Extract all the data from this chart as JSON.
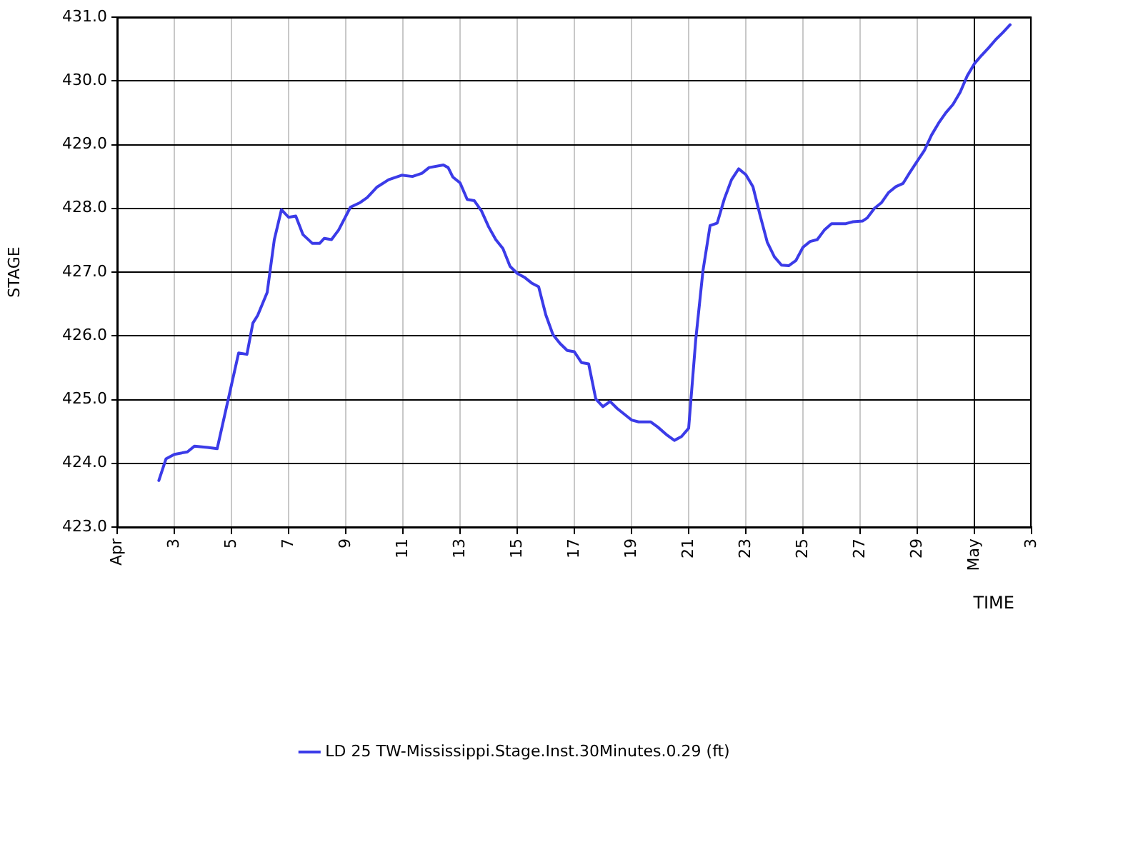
{
  "chart_data": {
    "type": "line",
    "xlabel": "TIME",
    "ylabel": "STAGE",
    "xlim": [
      "--04-01",
      "--05-03"
    ],
    "xticks": [
      {
        "value": "--04-01",
        "label": "Apr"
      },
      {
        "value": "--04-03",
        "label": "3"
      },
      {
        "value": "--04-05",
        "label": "5"
      },
      {
        "value": "--04-07",
        "label": "7"
      },
      {
        "value": "--04-09",
        "label": "9"
      },
      {
        "value": "--04-11",
        "label": "11"
      },
      {
        "value": "--04-13",
        "label": "13"
      },
      {
        "value": "--04-15",
        "label": "15"
      },
      {
        "value": "--04-17",
        "label": "17"
      },
      {
        "value": "--04-19",
        "label": "19"
      },
      {
        "value": "--04-21",
        "label": "21"
      },
      {
        "value": "--04-23",
        "label": "23"
      },
      {
        "value": "--04-25",
        "label": "25"
      },
      {
        "value": "--04-27",
        "label": "27"
      },
      {
        "value": "--04-29",
        "label": "29"
      },
      {
        "value": "--05-01",
        "label": "May"
      },
      {
        "value": "--05-03",
        "label": "3"
      }
    ],
    "ylim": [
      423,
      431
    ],
    "yticks": [
      {
        "value": 423,
        "label": "423.0"
      },
      {
        "value": 424,
        "label": "424.0"
      },
      {
        "value": 425,
        "label": "425.0"
      },
      {
        "value": 426,
        "label": "426.0"
      },
      {
        "value": 427,
        "label": "427.0"
      },
      {
        "value": 428,
        "label": "428.0"
      },
      {
        "value": 429,
        "label": "429.0"
      },
      {
        "value": 430,
        "label": "430.0"
      },
      {
        "value": 431,
        "label": "431.0"
      }
    ],
    "grid": true,
    "legend": "bottom",
    "marker": "none",
    "line_style": "solid",
    "series": [
      {
        "name": "LD 25 TW-Mississippi.Stage.Inst.30Minutes.0.29 (ft)",
        "color": "#3b3be8",
        "x": [
          "--04-02T11:00",
          "--04-02T17:00",
          "--04-03T00:00",
          "--04-03T11:00",
          "--04-03T17:00",
          "--04-04T04:00",
          "--04-04T12:00",
          "--04-05T06:00",
          "--04-05T13:00",
          "--04-05T18:00",
          "--04-05T22:00",
          "--04-06T06:00",
          "--04-06T12:00",
          "--04-06T18:00",
          "--04-07T00:00",
          "--04-07T06:00",
          "--04-07T12:00",
          "--04-07T20:00",
          "--04-08T02:00",
          "--04-08T06:00",
          "--04-08T12:00",
          "--04-08T18:00",
          "--04-09T04:00",
          "--04-09T12:00",
          "--04-09T18:00",
          "--04-10T02:00",
          "--04-10T12:00",
          "--04-10T23:00",
          "--04-11T08:00",
          "--04-11T16:00",
          "--04-11T22:00",
          "--04-12T10:00",
          "--04-12T14:00",
          "--04-12T18:00",
          "--04-13T00:00",
          "--04-13T06:00",
          "--04-13T12:00",
          "--04-13T18:00",
          "--04-14T00:00",
          "--04-14T06:00",
          "--04-14T12:00",
          "--04-14T18:00",
          "--04-15T00:00",
          "--04-15T06:00",
          "--04-15T12:00",
          "--04-15T18:00",
          "--04-16T00:00",
          "--04-16T06:00",
          "--04-16T12:00",
          "--04-16T18:00",
          "--04-17T00:00",
          "--04-17T06:00",
          "--04-17T12:00",
          "--04-17T18:00",
          "--04-18T00:00",
          "--04-18T06:00",
          "--04-18T12:00",
          "--04-19T00:00",
          "--04-19T06:00",
          "--04-19T16:00",
          "--04-19T22:00",
          "--04-20T06:00",
          "--04-20T12:00",
          "--04-20T18:00",
          "--04-21T00:00",
          "--04-21T06:00",
          "--04-21T12:00",
          "--04-21T18:00",
          "--04-22T00:00",
          "--04-22T06:00",
          "--04-22T12:00",
          "--04-22T18:00",
          "--04-23T00:00",
          "--04-23T06:00",
          "--04-23T12:00",
          "--04-23T18:00",
          "--04-24T00:00",
          "--04-24T06:00",
          "--04-24T12:00",
          "--04-24T18:00",
          "--04-25T00:00",
          "--04-25T06:00",
          "--04-25T12:00",
          "--04-25T18:00",
          "--04-26T00:00",
          "--04-26T12:00",
          "--04-26T18:00",
          "--04-27T02:00",
          "--04-27T06:00",
          "--04-27T12:00",
          "--04-27T18:00",
          "--04-28T00:00",
          "--04-28T06:00",
          "--04-28T12:00",
          "--04-28T18:00",
          "--04-29T00:00",
          "--04-29T06:00",
          "--04-29T12:00",
          "--04-29T18:00",
          "--04-30T00:00",
          "--04-30T06:00",
          "--04-30T12:00",
          "--04-30T18:00",
          "--05-01T00:00",
          "--05-01T06:00",
          "--05-01T12:00",
          "--05-01T18:00",
          "--05-02T00:00",
          "--05-02T06:00"
        ],
        "values": [
          423.73,
          424.07,
          424.14,
          424.18,
          424.27,
          424.25,
          424.23,
          425.73,
          425.71,
          426.2,
          426.32,
          426.68,
          427.51,
          427.98,
          427.86,
          427.88,
          427.59,
          427.45,
          427.45,
          427.53,
          427.51,
          427.66,
          428.02,
          428.09,
          428.17,
          428.33,
          428.45,
          428.52,
          428.5,
          428.55,
          428.64,
          428.68,
          428.64,
          428.49,
          428.4,
          428.14,
          428.12,
          427.96,
          427.71,
          427.51,
          427.37,
          427.09,
          426.98,
          426.92,
          426.83,
          426.77,
          426.33,
          426.02,
          425.88,
          425.77,
          425.75,
          425.58,
          425.56,
          425.01,
          424.89,
          424.97,
          424.86,
          424.68,
          424.65,
          424.65,
          424.57,
          424.44,
          424.36,
          424.42,
          424.55,
          425.95,
          427.02,
          427.73,
          427.77,
          428.15,
          428.45,
          428.62,
          428.53,
          428.34,
          427.89,
          427.47,
          427.24,
          427.11,
          427.1,
          427.18,
          427.39,
          427.48,
          427.51,
          427.66,
          427.76,
          427.76,
          427.79,
          427.8,
          427.85,
          428.0,
          428.09,
          428.25,
          428.34,
          428.39,
          428.57,
          428.74,
          428.91,
          429.15,
          429.34,
          429.5,
          429.63,
          429.82,
          430.08,
          430.27,
          430.4,
          430.52,
          430.65,
          430.76,
          430.88
        ]
      }
    ]
  }
}
